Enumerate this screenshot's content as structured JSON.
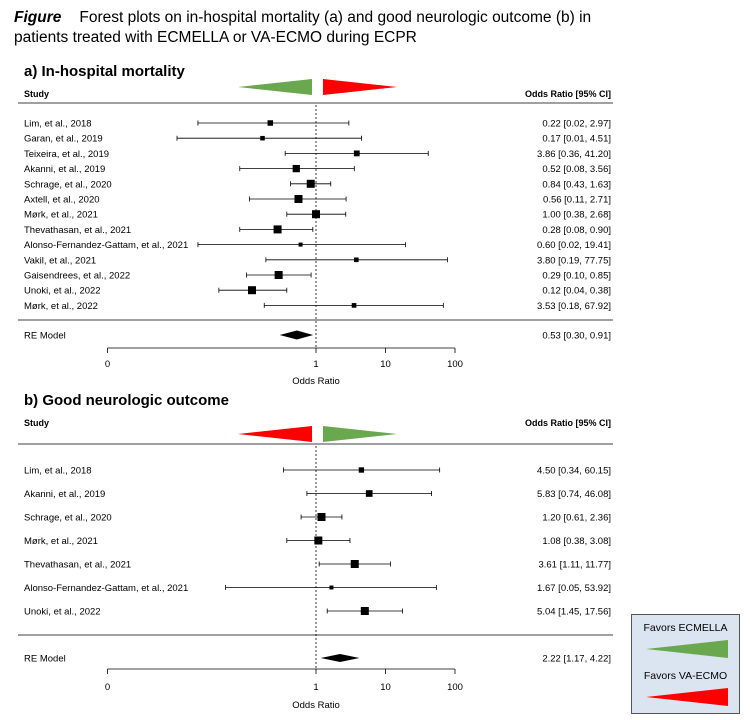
{
  "caption": {
    "label": "Figure",
    "text": "Forest plots on in-hospital mortality (a) and good neurologic outcome (b) in patients treated with ECMELLA or VA-ECMO during ECPR"
  },
  "colors": {
    "green": "#6aa84f",
    "red": "#ff0000",
    "legend_bg": "#dbe5f1"
  },
  "legend": {
    "favors_ecmella": "Favors ECMELLA",
    "favors_vaecmo": "Favors VA-ECMO"
  },
  "chart_data": [
    {
      "type": "forest",
      "title": "a) In-hospital mortality",
      "col_study": "Study",
      "col_or": "Odds Ratio [95% CI]",
      "xlabel": "Odds Ratio",
      "x_scale": "log",
      "xticks": [
        "0",
        "1",
        "10",
        "100"
      ],
      "studies": [
        {
          "name": "Lim, et al., 2018",
          "or": 0.22,
          "lo": 0.02,
          "hi": 2.97,
          "text": "0.22 [0.02,  2.97]"
        },
        {
          "name": "Garan, et al., 2019",
          "or": 0.17,
          "lo": 0.01,
          "hi": 4.51,
          "text": "0.17 [0.01,  4.51]"
        },
        {
          "name": "Teixeira, et al., 2019",
          "or": 3.86,
          "lo": 0.36,
          "hi": 41.2,
          "text": "3.86 [0.36, 41.20]"
        },
        {
          "name": "Akanni, et al., 2019",
          "or": 0.52,
          "lo": 0.08,
          "hi": 3.56,
          "text": "0.52 [0.08,  3.56]"
        },
        {
          "name": "Schrage, et al., 2020",
          "or": 0.84,
          "lo": 0.43,
          "hi": 1.63,
          "text": "0.84 [0.43,  1.63]"
        },
        {
          "name": "Axtell, et al., 2020",
          "or": 0.56,
          "lo": 0.11,
          "hi": 2.71,
          "text": "0.56 [0.11,  2.71]"
        },
        {
          "name": "Mørk, et al., 2021",
          "or": 1.0,
          "lo": 0.38,
          "hi": 2.68,
          "text": "1.00 [0.38,  2.68]"
        },
        {
          "name": "Thevathasan, et al., 2021",
          "or": 0.28,
          "lo": 0.08,
          "hi": 0.9,
          "text": "0.28 [0.08,  0.90]"
        },
        {
          "name": "Alonso-Fernandez-Gattam, et al., 2021",
          "or": 0.6,
          "lo": 0.02,
          "hi": 19.41,
          "text": "0.60 [0.02, 19.41]"
        },
        {
          "name": "Vakil, et al., 2021",
          "or": 3.8,
          "lo": 0.19,
          "hi": 77.75,
          "text": "3.80 [0.19, 77.75]"
        },
        {
          "name": "Gaisendrees, et al., 2022",
          "or": 0.29,
          "lo": 0.1,
          "hi": 0.85,
          "text": "0.29 [0.10,  0.85]"
        },
        {
          "name": "Unoki, et al., 2022",
          "or": 0.12,
          "lo": 0.04,
          "hi": 0.38,
          "text": "0.12 [0.04,  0.38]"
        },
        {
          "name": "Mørk, et al., 2022",
          "or": 3.53,
          "lo": 0.18,
          "hi": 67.92,
          "text": "3.53 [0.18, 67.92]"
        }
      ],
      "pooled": {
        "name": "RE Model",
        "or": 0.53,
        "lo": 0.3,
        "hi": 0.91,
        "text": "0.53 [0.30,  0.91]"
      }
    },
    {
      "type": "forest",
      "title": "b) Good neurologic outcome",
      "col_study": "Study",
      "col_or": "Odds Ratio [95% CI]",
      "xlabel": "Odds Ratio",
      "x_scale": "log",
      "xticks": [
        "0",
        "1",
        "10",
        "100"
      ],
      "studies": [
        {
          "name": "Lim, et al., 2018",
          "or": 4.5,
          "lo": 0.34,
          "hi": 60.15,
          "text": "4.50 [0.34, 60.15]"
        },
        {
          "name": "Akanni, et al., 2019",
          "or": 5.83,
          "lo": 0.74,
          "hi": 46.08,
          "text": "5.83 [0.74, 46.08]"
        },
        {
          "name": "Schrage, et al., 2020",
          "or": 1.2,
          "lo": 0.61,
          "hi": 2.36,
          "text": "1.20 [0.61,  2.36]"
        },
        {
          "name": "Mørk, et al., 2021",
          "or": 1.08,
          "lo": 0.38,
          "hi": 3.08,
          "text": "1.08 [0.38,  3.08]"
        },
        {
          "name": "Thevathasan, et al., 2021",
          "or": 3.61,
          "lo": 1.11,
          "hi": 11.77,
          "text": "3.61 [1.11, 11.77]"
        },
        {
          "name": "Alonso-Fernandez-Gattam, et al., 2021",
          "or": 1.67,
          "lo": 0.05,
          "hi": 53.92,
          "text": "1.67 [0.05, 53.92]"
        },
        {
          "name": "Unoki, et al., 2022",
          "or": 5.04,
          "lo": 1.45,
          "hi": 17.56,
          "text": "5.04 [1.45, 17.56]"
        }
      ],
      "pooled": {
        "name": "RE Model",
        "or": 2.22,
        "lo": 1.17,
        "hi": 4.22,
        "text": "2.22 [1.17,  4.22]"
      }
    }
  ]
}
